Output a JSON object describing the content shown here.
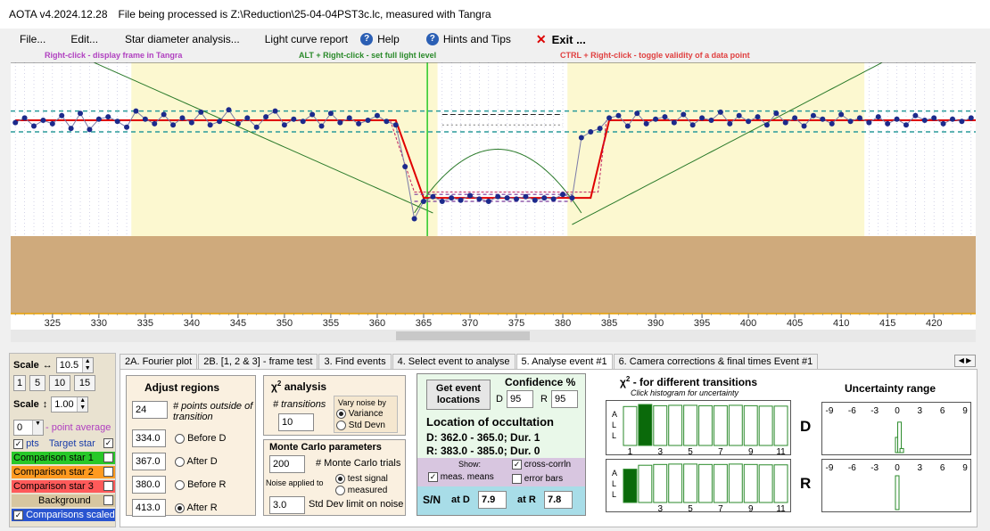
{
  "window": {
    "app": "AOTA v4.2024.12.28",
    "file_text": "File being processed is Z:\\Reduction\\25-04-04PST3c.lc, measured with Tangra"
  },
  "menu": {
    "file": "File...",
    "edit": "Edit...",
    "star_diameter": "Star diameter analysis...",
    "light_curve_report": "Light curve report",
    "help": "Help",
    "hints": "Hints and Tips",
    "exit": "Exit ..."
  },
  "hints": {
    "right_click": "Right-click  -  display frame in Tangra",
    "alt_right_click": "ALT + Right-click  -  set full light level",
    "ctrl_right_click": "CTRL + Right-click  -  toggle validity of a data point"
  },
  "colors": {
    "purple_hint": "#b040c0",
    "green_hint": "#2a8a2a",
    "red_hint": "#e04040"
  },
  "chart_data": {
    "type": "line",
    "x_ticks": [
      "325",
      "330",
      "335",
      "340",
      "345",
      "350",
      "355",
      "360",
      "365",
      "370",
      "375",
      "380",
      "385",
      "390",
      "395",
      "400",
      "405",
      "410",
      "415",
      "420"
    ],
    "xlim": [
      320.5,
      424.5
    ],
    "series": [
      {
        "values": [
          [
            321,
            0.98
          ],
          [
            322,
            1.02
          ],
          [
            323,
            0.95
          ],
          [
            324,
            1.0
          ],
          [
            325,
            0.97
          ],
          [
            326,
            1.04
          ],
          [
            327,
            0.93
          ],
          [
            328,
            1.06
          ],
          [
            329,
            0.92
          ],
          [
            330,
            1.01
          ],
          [
            331,
            1.03
          ],
          [
            332,
            0.99
          ],
          [
            333,
            0.94
          ],
          [
            334,
            1.08
          ],
          [
            335,
            1.01
          ],
          [
            336,
            0.97
          ],
          [
            337,
            1.05
          ],
          [
            338,
            0.96
          ],
          [
            339,
            1.02
          ],
          [
            340,
            0.98
          ],
          [
            341,
            1.07
          ],
          [
            342,
            0.96
          ],
          [
            343,
            0.99
          ],
          [
            344,
            1.09
          ],
          [
            345,
            0.97
          ],
          [
            346,
            1.02
          ],
          [
            347,
            0.94
          ],
          [
            348,
            1.03
          ],
          [
            349,
            1.08
          ],
          [
            350,
            0.96
          ],
          [
            351,
            1.01
          ],
          [
            352,
            0.99
          ],
          [
            353,
            1.05
          ],
          [
            354,
            0.95
          ],
          [
            355,
            1.06
          ],
          [
            356,
            0.98
          ],
          [
            357,
            1.02
          ],
          [
            358,
            0.97
          ],
          [
            359,
            1.0
          ],
          [
            360,
            1.04
          ],
          [
            361,
            0.99
          ],
          [
            362,
            0.96
          ],
          [
            363,
            0.6
          ],
          [
            364,
            0.15
          ],
          [
            365,
            0.3
          ],
          [
            366,
            0.34
          ],
          [
            367,
            0.3
          ],
          [
            368,
            0.33
          ],
          [
            369,
            0.31
          ],
          [
            370,
            0.35
          ],
          [
            371,
            0.32
          ],
          [
            372,
            0.3
          ],
          [
            373,
            0.34
          ],
          [
            374,
            0.33
          ],
          [
            375,
            0.32
          ],
          [
            376,
            0.34
          ],
          [
            377,
            0.31
          ],
          [
            378,
            0.33
          ],
          [
            379,
            0.32
          ],
          [
            380,
            0.36
          ],
          [
            381,
            0.33
          ],
          [
            382,
            0.85
          ],
          [
            383,
            0.9
          ],
          [
            384,
            0.93
          ],
          [
            385,
            1.02
          ],
          [
            386,
            1.04
          ],
          [
            387,
            0.95
          ],
          [
            388,
            1.06
          ],
          [
            389,
            0.97
          ],
          [
            390,
            1.01
          ],
          [
            391,
            1.03
          ],
          [
            392,
            0.98
          ],
          [
            393,
            1.05
          ],
          [
            394,
            0.96
          ],
          [
            395,
            1.02
          ],
          [
            396,
            1.0
          ],
          [
            397,
            1.07
          ],
          [
            398,
            0.97
          ],
          [
            399,
            1.04
          ],
          [
            400,
            0.99
          ],
          [
            401,
            1.03
          ],
          [
            402,
            0.96
          ],
          [
            403,
            1.06
          ],
          [
            404,
            0.98
          ],
          [
            405,
            1.02
          ],
          [
            406,
            0.95
          ],
          [
            407,
            1.04
          ],
          [
            408,
            1.01
          ],
          [
            409,
            0.97
          ],
          [
            410,
            1.05
          ],
          [
            411,
            0.99
          ],
          [
            412,
            1.02
          ],
          [
            413,
            0.98
          ],
          [
            414,
            1.03
          ],
          [
            415,
            0.97
          ],
          [
            416,
            1.01
          ],
          [
            417,
            0.96
          ],
          [
            418,
            1.04
          ],
          [
            419,
            1.0
          ],
          [
            420,
            1.02
          ],
          [
            421,
            0.97
          ],
          [
            422,
            1.01
          ],
          [
            423,
            0.99
          ],
          [
            424,
            1.02
          ]
        ]
      }
    ],
    "model_levels": {
      "baseline": 1.0,
      "bottom": 0.33
    },
    "transitions": {
      "D": [
        362.0,
        365.0
      ],
      "R": [
        383.0,
        385.0
      ]
    },
    "colors": {
      "data": "#1c2a8c",
      "model": "#e00000",
      "background": "#cfaa7c",
      "grid_green": "#2a7a2a"
    }
  },
  "left_panel": {
    "scale_h_label": "Scale",
    "scale_h_value": "10.5",
    "scale_buttons": [
      "1",
      "5",
      "10",
      "15"
    ],
    "scale_v_label": "Scale",
    "scale_v_value": "1.00",
    "point_avg_value": "0",
    "point_avg_label": "- point average",
    "pts_label": "pts",
    "target_label": "Target star",
    "comp1": "Comparison star 1",
    "comp2": "Comparison star 2",
    "comp3": "Comparison star 3",
    "background": "Background",
    "comps_scaled": "Comparisons scaled",
    "arrow_lr": "↔",
    "arrow_ud": "↕",
    "colors": {
      "target": "#1a3da8",
      "comp1": "#28c828",
      "comp2": "#ff9a20",
      "comp3": "#ff5a5a",
      "background": "#d7c6a0",
      "scaled": "#2a55d0"
    }
  },
  "tabs": [
    "2A. Fourier plot",
    "2B. [1, 2 & 3] - frame test",
    "3. Find events",
    "4. Select event to analyse",
    "5. Analyse event #1",
    "6. Camera corrections & final times Event #1"
  ],
  "tab_active": 4,
  "adjust": {
    "title": "Adjust regions",
    "points_value": "24",
    "points_label": "# points outside of transition",
    "rows": [
      {
        "value": "334.0",
        "label": "Before D",
        "selected": false
      },
      {
        "value": "367.0",
        "label": "After D",
        "selected": false
      },
      {
        "value": "380.0",
        "label": "Before R",
        "selected": false
      },
      {
        "value": "413.0",
        "label": "After R",
        "selected": true
      }
    ]
  },
  "chi": {
    "title": "χ",
    "title_sup": "2",
    "title_rest": "analysis",
    "transitions_label": "# transitions",
    "transitions_value": "10",
    "vary_label": "Vary noise by",
    "variance": "Variance",
    "std_devn": "Std Devn"
  },
  "mc": {
    "title": "Monte Carlo parameters",
    "trials_value": "200",
    "trials_label": "# Monte Carlo trials",
    "noise_applied": "Noise applied to",
    "test_signal": "test signal",
    "measured": "measured",
    "std_value": "3.0",
    "std_label": "Std Dev limit on noise"
  },
  "event": {
    "get_btn": "Get event locations",
    "conf_title": "Confidence %",
    "d_label": "D",
    "d_value": "95",
    "r_label": "R",
    "r_value": "95",
    "loc_title": "Location of occultation",
    "d_line": "D: 362.0 - 365.0; Dur. 1",
    "r_line": "R: 383.0 - 385.0; Dur. 0",
    "show": "Show:",
    "meas_means": "meas. means",
    "cross_corr": "cross-corrln",
    "error_bars": "error bars",
    "sn_label": "S/N",
    "at_d": "at D",
    "at_d_value": "7.9",
    "at_r": "at R",
    "at_r_value": "7.8"
  },
  "chi_trans": {
    "title": "χ",
    "title_sup": "2",
    "title_rest": " - for different transitions",
    "subtitle": "Click histogram for uncertainty",
    "all_label": "A L L",
    "ticks": [
      "1",
      "3",
      "5",
      "7",
      "9",
      "11"
    ],
    "d_label": "D",
    "r_label": "R",
    "d_bars": [
      0.95,
      1.0,
      0.97,
      0.98,
      0.98,
      0.97,
      0.97,
      0.98,
      0.97,
      0.96,
      0.96
    ],
    "d_selected": 1,
    "r_bars": [
      0.85,
      0.95,
      0.97,
      0.98,
      0.98,
      0.97,
      0.97,
      0.98,
      0.97,
      0.96,
      0.96
    ],
    "r_selected": 0
  },
  "uncert": {
    "title": "Uncertainty range",
    "ticks": [
      "-9",
      "-6",
      "-3",
      "0",
      "3",
      "6",
      "9"
    ],
    "d_bars": [
      {
        "pos": 0,
        "h": 0.45
      },
      {
        "pos": 0.3,
        "h": 0.9
      },
      {
        "pos": 0.6,
        "h": 0.12
      }
    ],
    "r_bars": [
      {
        "pos": 0,
        "h": 1.0
      }
    ]
  }
}
